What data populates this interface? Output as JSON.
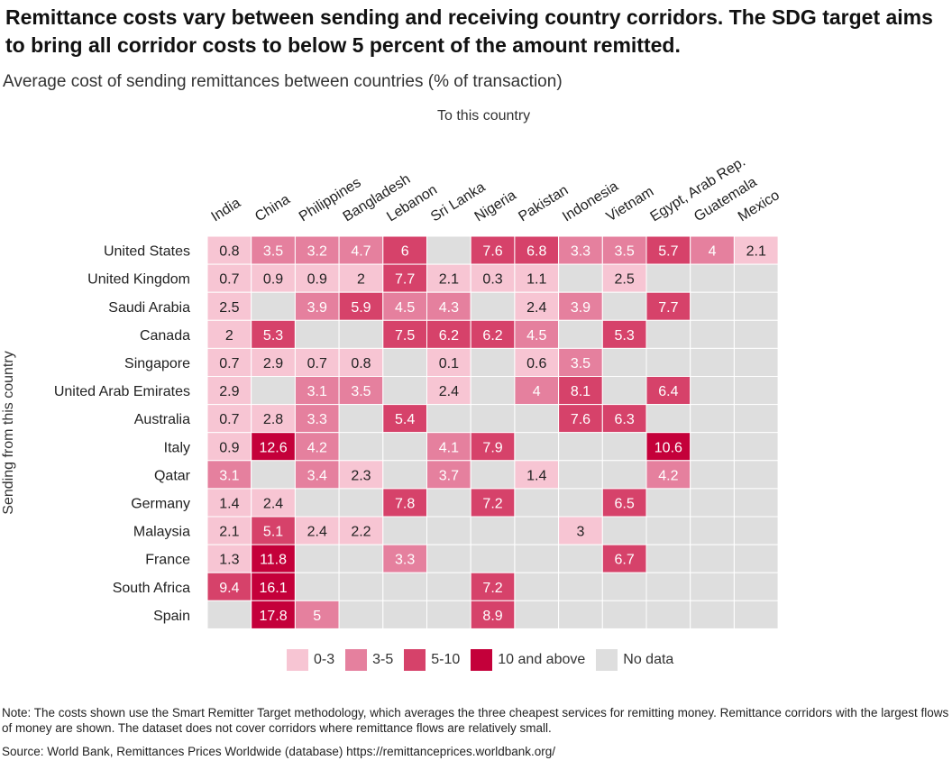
{
  "header": {
    "title": "Remittance costs vary between sending and receiving country corridors. The SDG target aims to bring all corridor costs to below 5 percent of the amount remitted.",
    "subtitle": "Average cost of sending remittances between countries (% of transaction)"
  },
  "legend": {
    "items": [
      {
        "label": "0-3",
        "color": "#f7c5d3"
      },
      {
        "label": "3-5",
        "color": "#e5809e"
      },
      {
        "label": "5-10",
        "color": "#d6426a"
      },
      {
        "label": "10 and above",
        "color": "#c4003a"
      },
      {
        "label": "No data",
        "color": "#dedede"
      }
    ]
  },
  "footer": {
    "note": "Note: The costs shown use the Smart Remitter Target methodology, which averages the three cheapest services for remitting money. Remittance corridors with the largest flows of money are shown. The dataset does not cover corridors where remittance flows are relatively small.",
    "source": "Source: World Bank, Remittances Prices Worldwide (database) https://remittanceprices.worldbank.org/"
  },
  "chart_data": {
    "type": "heatmap",
    "xlabel": "To this country",
    "ylabel": "Sending from this country",
    "x_categories": [
      "India",
      "China",
      "Philippines",
      "Bangladesh",
      "Lebanon",
      "Sri Lanka",
      "Nigeria",
      "Pakistan",
      "Indonesia",
      "Vietnam",
      "Egypt, Arab Rep.",
      "Guatemala",
      "Mexico"
    ],
    "y_categories": [
      "United States",
      "United Kingdom",
      "Saudi Arabia",
      "Canada",
      "Singapore",
      "United Arab Emirates",
      "Australia",
      "Italy",
      "Qatar",
      "Germany",
      "Malaysia",
      "France",
      "South Africa",
      "Spain"
    ],
    "values": [
      [
        0.8,
        3.5,
        3.2,
        4.7,
        6,
        null,
        7.6,
        6.8,
        3.3,
        3.5,
        5.7,
        4,
        2.1
      ],
      [
        0.7,
        0.9,
        0.9,
        2,
        7.7,
        2.1,
        0.3,
        1.1,
        null,
        2.5,
        null,
        null,
        null
      ],
      [
        2.5,
        null,
        3.9,
        5.9,
        4.5,
        4.3,
        null,
        2.4,
        3.9,
        null,
        7.7,
        null,
        null
      ],
      [
        2,
        5.3,
        null,
        null,
        7.5,
        6.2,
        6.2,
        4.5,
        null,
        5.3,
        null,
        null,
        null
      ],
      [
        0.7,
        2.9,
        0.7,
        0.8,
        null,
        0.1,
        null,
        0.6,
        3.5,
        null,
        null,
        null,
        null
      ],
      [
        2.9,
        null,
        3.1,
        3.5,
        null,
        2.4,
        null,
        4,
        8.1,
        null,
        6.4,
        null,
        null
      ],
      [
        0.7,
        2.8,
        3.3,
        null,
        5.4,
        null,
        null,
        null,
        7.6,
        6.3,
        null,
        null,
        null
      ],
      [
        0.9,
        12.6,
        4.2,
        null,
        null,
        4.1,
        7.9,
        null,
        null,
        null,
        10.6,
        null,
        null
      ],
      [
        3.1,
        null,
        3.4,
        2.3,
        null,
        3.7,
        null,
        1.4,
        null,
        null,
        4.2,
        null,
        null
      ],
      [
        1.4,
        2.4,
        null,
        null,
        7.8,
        null,
        7.2,
        null,
        null,
        6.5,
        null,
        null,
        null
      ],
      [
        2.1,
        5.1,
        2.4,
        2.2,
        null,
        null,
        null,
        null,
        3,
        null,
        null,
        null,
        null
      ],
      [
        1.3,
        11.8,
        null,
        null,
        3.3,
        null,
        null,
        null,
        null,
        6.7,
        null,
        null,
        null
      ],
      [
        9.4,
        16.1,
        null,
        null,
        null,
        null,
        7.2,
        null,
        null,
        null,
        null,
        null,
        null
      ],
      [
        null,
        17.8,
        5,
        null,
        null,
        null,
        8.9,
        null,
        null,
        null,
        null,
        null,
        null
      ]
    ],
    "bins": [
      {
        "label": "0-3",
        "max": 3,
        "color": "#f7c5d3"
      },
      {
        "label": "3-5",
        "max": 5,
        "color": "#e5809e"
      },
      {
        "label": "5-10",
        "max": 10,
        "color": "#d6426a"
      },
      {
        "label": "10 and above",
        "max": 1000,
        "color": "#c4003a"
      }
    ],
    "no_data_color": "#dedede"
  }
}
